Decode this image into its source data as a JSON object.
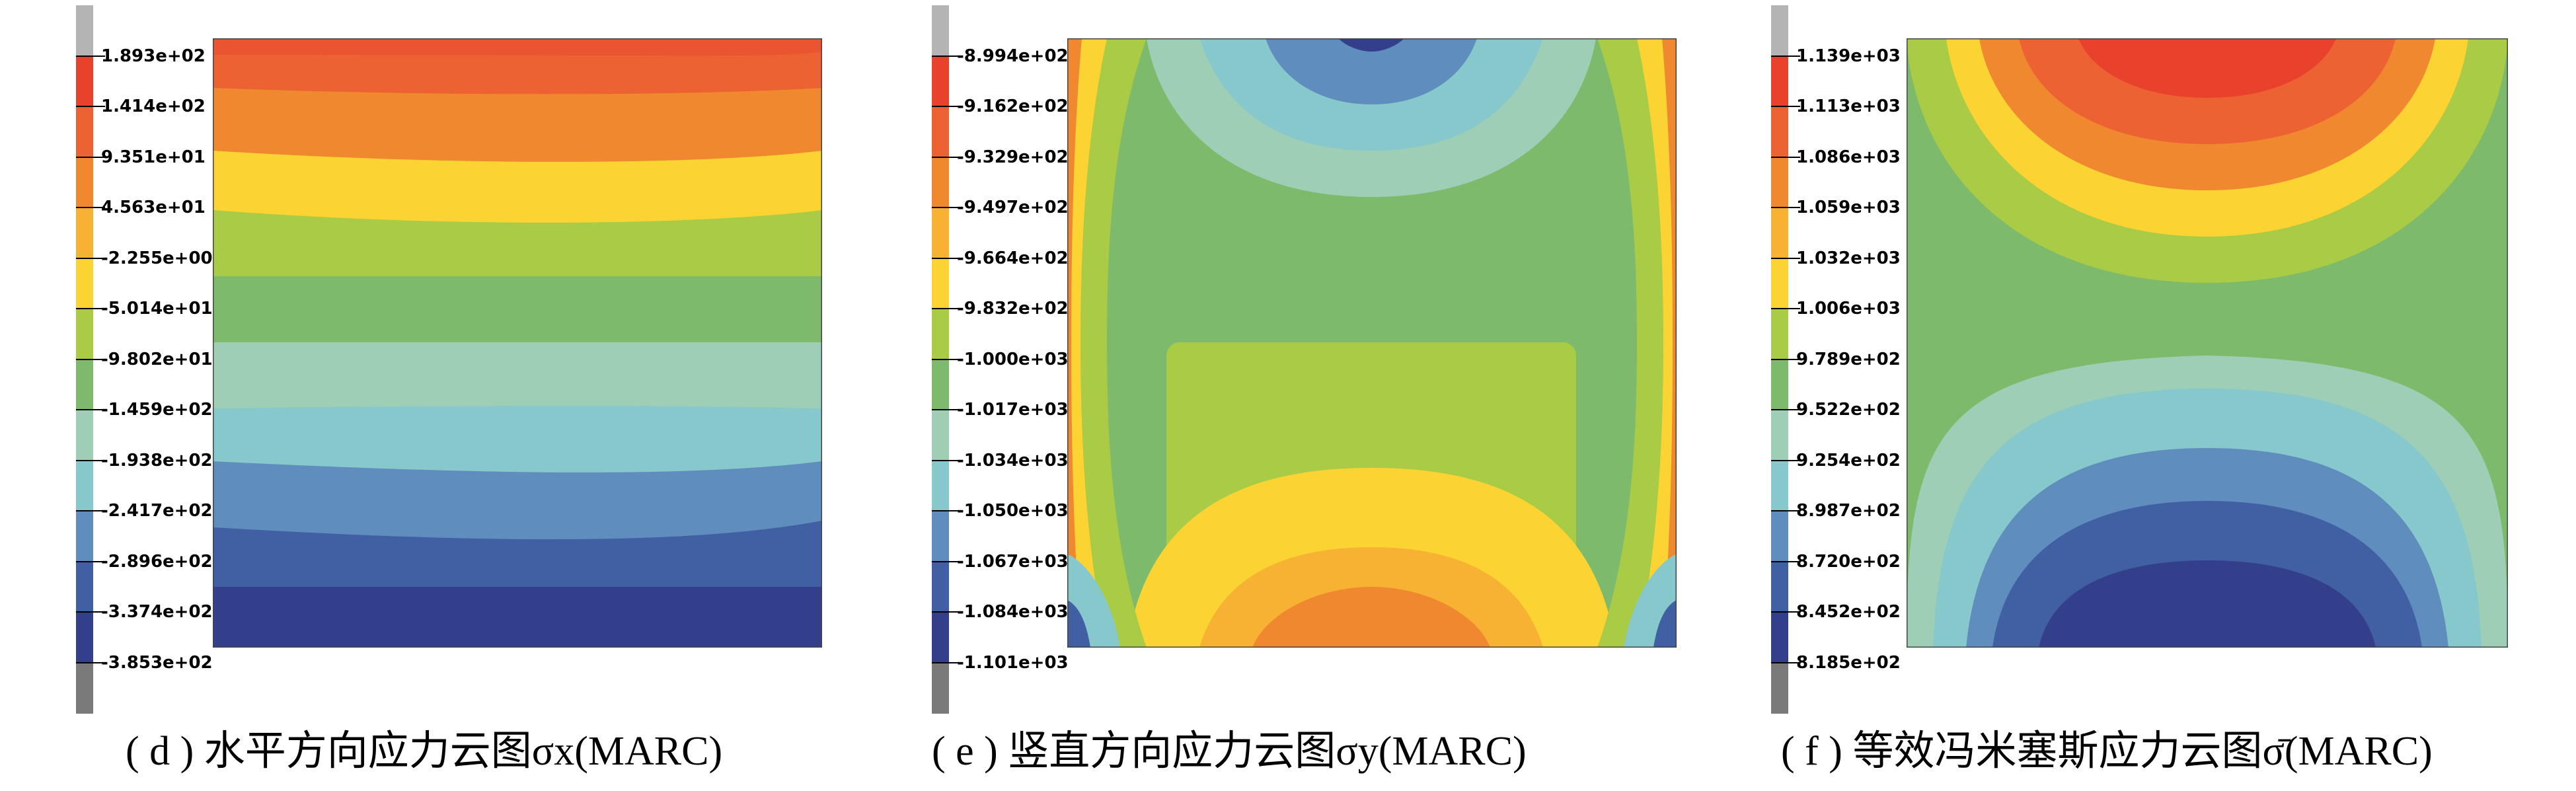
{
  "panels": [
    {
      "id": "d",
      "caption": "( d ) 水平方向应力云图σx(MARC)",
      "legend_values": [
        "1.893e+02",
        "1.414e+02",
        "9.351e+01",
        "4.563e+01",
        "-2.255e+00",
        "-5.014e+01",
        "-9.802e+01",
        "-1.459e+02",
        "-1.938e+02",
        "-2.417e+02",
        "-2.896e+02",
        "-3.374e+02",
        "-3.853e+02"
      ]
    },
    {
      "id": "e",
      "caption": "( e ) 竖直方向应力云图σy(MARC)",
      "legend_values": [
        "-8.994e+02",
        "-9.162e+02",
        "-9.329e+02",
        "-9.497e+02",
        "-9.664e+02",
        "-9.832e+02",
        "-1.000e+03",
        "-1.017e+03",
        "-1.034e+03",
        "-1.050e+03",
        "-1.067e+03",
        "-1.084e+03",
        "-1.101e+03"
      ]
    },
    {
      "id": "f",
      "caption": "( f ) 等效冯米塞斯应力云图σ̄(MARC)",
      "legend_values": [
        "1.139e+03",
        "1.113e+03",
        "1.086e+03",
        "1.059e+03",
        "1.032e+03",
        "1.006e+03",
        "9.789e+02",
        "9.522e+02",
        "9.254e+02",
        "8.987e+02",
        "8.720e+02",
        "8.452e+02",
        "8.185e+02"
      ]
    }
  ],
  "colors": {
    "scale": [
      "#b4b4b4",
      "#e8412c",
      "#ec6233",
      "#f0882f",
      "#f7b233",
      "#fbd434",
      "#a9cb45",
      "#7eba6b",
      "#9ecfb6",
      "#87c8cc",
      "#5f8dbd",
      "#415fa3",
      "#333f8b",
      "#7a7a7a"
    ]
  }
}
